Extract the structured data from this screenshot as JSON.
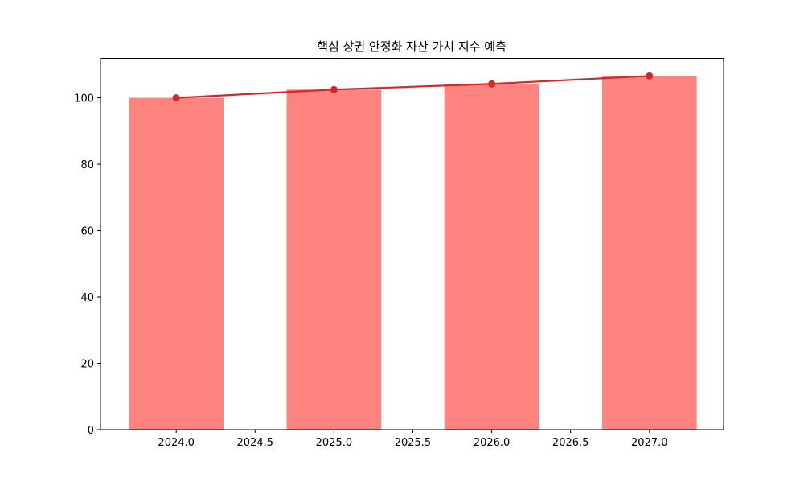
{
  "chart_data": {
    "type": "bar",
    "title": "핵심 상권 안정화 자산 가치 지수 예측",
    "xlabel": "",
    "ylabel": "",
    "x": [
      2024,
      2025,
      2026,
      2027
    ],
    "series": [
      {
        "type": "bar",
        "values": [
          100.0,
          102.5,
          104.2,
          106.6
        ],
        "color": "#ff8480"
      },
      {
        "type": "line",
        "values": [
          100.0,
          102.5,
          104.2,
          106.6
        ],
        "color": "#d62728",
        "marker": "circle"
      }
    ],
    "bar_width": 0.6,
    "xlim": [
      2023.52,
      2027.47
    ],
    "ylim": [
      0,
      111.9
    ],
    "xticks": [
      "2024.0",
      "2024.5",
      "2025.0",
      "2025.5",
      "2026.0",
      "2026.5",
      "2027.0"
    ],
    "xtick_values": [
      2024.0,
      2024.5,
      2025.0,
      2025.5,
      2026.0,
      2026.5,
      2027.0
    ],
    "yticks": [
      "0",
      "20",
      "40",
      "60",
      "80",
      "100"
    ],
    "ytick_values": [
      0,
      20,
      40,
      60,
      80,
      100
    ],
    "grid": false,
    "legend": "none"
  }
}
